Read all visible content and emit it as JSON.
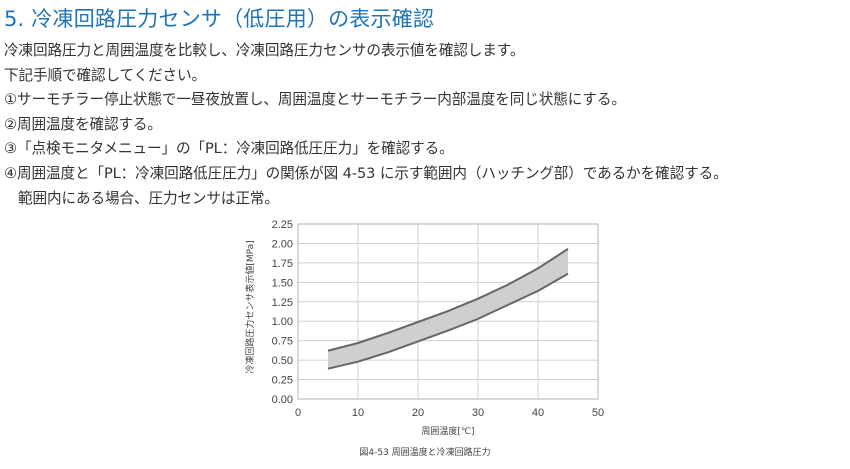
{
  "section": {
    "heading": "5. 冷凍回路圧力センサ（低圧用）の表示確認"
  },
  "instructions": {
    "intro": "冷凍回路圧力と周囲温度を比較し、冷凍回路圧力センサの表示値を確認します。",
    "procedure_title": "下記手順で確認してください。",
    "steps": [
      "①サーモチラー停止状態で一昼夜放置し、周囲温度とサーモチラー内部温度を同じ状態にする。",
      "②周囲温度を確認する。",
      "③「点検モニタメニュー」の「PL：冷凍回路低圧圧力」を確認する。",
      "④周囲温度と「PL：冷凍回路低圧圧力」の関係が図 4-53 に示す範囲内（ハッチング部）であるかを確認する。"
    ],
    "note": "範囲内にある場合、圧力センサは正常。"
  },
  "figure": {
    "caption": "図4-53 周囲温度と冷凍回路圧力"
  },
  "chart_data": {
    "type": "area",
    "title": "",
    "xlabel": "周囲温度[℃]",
    "ylabel": "冷凍回路圧力センサ表示値[MPa]",
    "xlim": [
      0,
      50
    ],
    "ylim": [
      0,
      2.25
    ],
    "x_ticks": [
      "0",
      "10",
      "20",
      "30",
      "40",
      "50"
    ],
    "y_ticks": [
      "0.00",
      "0.25",
      "0.50",
      "0.75",
      "1.00",
      "1.25",
      "1.50",
      "1.75",
      "2.00",
      "2.25"
    ],
    "grid": true,
    "legend": "none",
    "series": [
      {
        "role": "upper",
        "x": [
          5,
          10,
          15,
          20,
          25,
          30,
          35,
          40,
          45
        ],
        "y": [
          0.62,
          0.72,
          0.85,
          0.99,
          1.13,
          1.29,
          1.47,
          1.68,
          1.93
        ]
      },
      {
        "role": "lower",
        "x": [
          5,
          10,
          15,
          20,
          25,
          30,
          35,
          40,
          45
        ],
        "y": [
          0.39,
          0.48,
          0.6,
          0.74,
          0.88,
          1.03,
          1.21,
          1.39,
          1.61
        ]
      }
    ],
    "band_color": "#cfcfcf",
    "line_color": "#666666",
    "grid_color": "#d0d0d0"
  }
}
